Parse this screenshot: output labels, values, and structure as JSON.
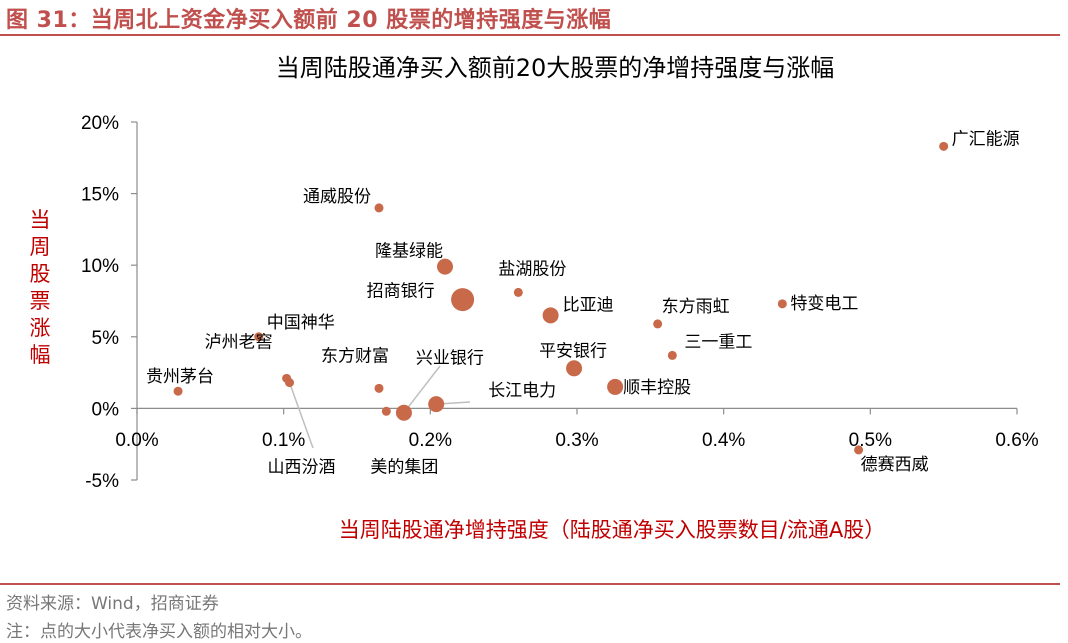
{
  "figure_title": "图 31：当周北上资金净买入额前 20 股票的增持强度与涨幅",
  "footer": {
    "source": "资料来源：Wind，招商证券",
    "note": "注：点的大小代表净买入额的相对大小。"
  },
  "colors": {
    "accent": "#c0504d",
    "axis_title": "#c00000",
    "marker": "#c8694a"
  },
  "chart_data": {
    "type": "scatter",
    "title": "当周陆股通净买入额前20大股票的净增持强度与涨幅",
    "xlabel": "当周陆股通净增持强度（陆股通净买入股票数目/流通A股）",
    "ylabel": "当周股票涨幅",
    "xlim": [
      0,
      0.006
    ],
    "ylim": [
      -0.05,
      0.2
    ],
    "x_ticks": [
      "0.0%",
      "0.1%",
      "0.2%",
      "0.3%",
      "0.4%",
      "0.5%",
      "0.6%"
    ],
    "y_ticks": [
      "20%",
      "15%",
      "10%",
      "5%",
      "0%",
      "-5%"
    ],
    "grid": false,
    "points": [
      {
        "name": "广汇能源",
        "x": 0.0055,
        "y": 0.183,
        "size": "small"
      },
      {
        "name": "通威股份",
        "x": 0.00165,
        "y": 0.14,
        "size": "small"
      },
      {
        "name": "隆基绿能",
        "x": 0.0021,
        "y": 0.099,
        "size": "medium"
      },
      {
        "name": "招商银行",
        "x": 0.00222,
        "y": 0.076,
        "size": "large"
      },
      {
        "name": "盐湖股份",
        "x": 0.0026,
        "y": 0.081,
        "size": "small"
      },
      {
        "name": "比亚迪",
        "x": 0.00282,
        "y": 0.065,
        "size": "medium"
      },
      {
        "name": "东方雨虹",
        "x": 0.00355,
        "y": 0.059,
        "size": "small"
      },
      {
        "name": "特变电工",
        "x": 0.0044,
        "y": 0.073,
        "size": "small"
      },
      {
        "name": "三一重工",
        "x": 0.00365,
        "y": 0.037,
        "size": "small"
      },
      {
        "name": "中国神华",
        "x": 0.00083,
        "y": 0.05,
        "size": "small"
      },
      {
        "name": "贵州茅台",
        "x": 0.00028,
        "y": 0.012,
        "size": "small"
      },
      {
        "name": "泸州老窖",
        "x": 0.00102,
        "y": 0.021,
        "size": "small"
      },
      {
        "name": "山西汾酒",
        "x": 0.00104,
        "y": 0.018,
        "size": "small"
      },
      {
        "name": "东方财富",
        "x": 0.00165,
        "y": 0.014,
        "size": "small"
      },
      {
        "name": "平安银行",
        "x": 0.00298,
        "y": 0.028,
        "size": "medium"
      },
      {
        "name": "顺丰控股",
        "x": 0.00326,
        "y": 0.015,
        "size": "medium"
      },
      {
        "name": "兴业银行",
        "x": 0.00182,
        "y": -0.003,
        "size": "medium"
      },
      {
        "name": "美的集团",
        "x": 0.0017,
        "y": -0.002,
        "size": "small"
      },
      {
        "name": "长江电力",
        "x": 0.00204,
        "y": 0.003,
        "size": "medium"
      },
      {
        "name": "德赛西威",
        "x": 0.00492,
        "y": -0.029,
        "size": "small"
      }
    ]
  }
}
